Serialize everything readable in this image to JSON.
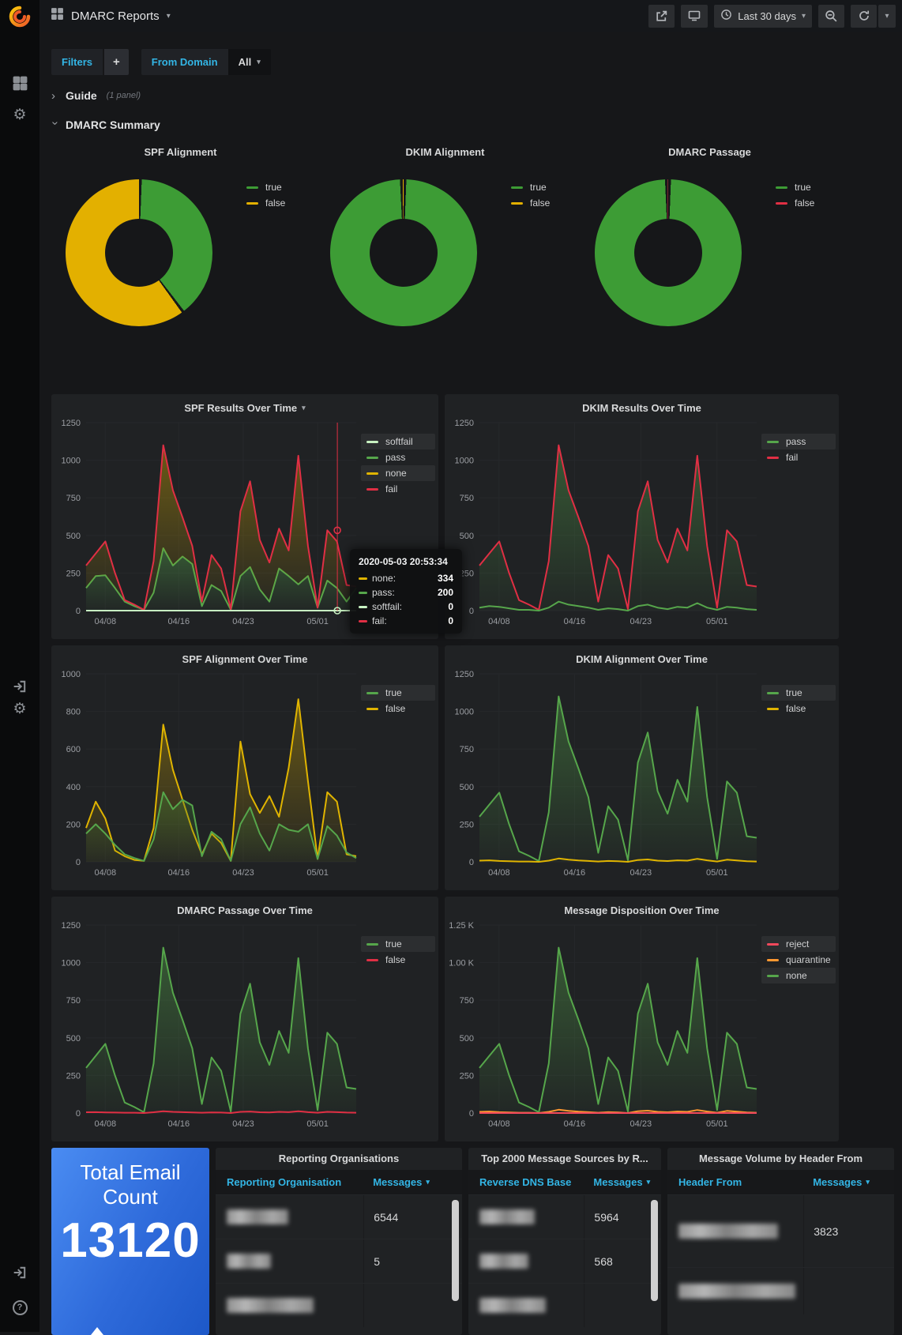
{
  "nav": {
    "title": "DMARC Reports",
    "time_range": "Last 30 days"
  },
  "icons": {
    "caret_down": "▾",
    "chevron": "›",
    "plus": "+",
    "question": "?",
    "logo": "grafana-spiral",
    "apps": "grid-squares",
    "settings": "gear",
    "sign_in": "arrow-into-bracket",
    "help": "question-circle",
    "share": "box-with-arrow",
    "tv_mode": "monitor",
    "clock": "clock-face",
    "zoom_out": "magnifier-minus",
    "refresh": "circular-arrows",
    "sort_desc": "▾",
    "gear_glyph": "⚙"
  },
  "filters": {
    "label": "Filters",
    "from_domain_label": "From Domain",
    "from_domain_value": "All"
  },
  "rows": {
    "guide": {
      "label": "Guide",
      "count": "(1 panel)"
    },
    "summary": {
      "label": "DMARC Summary"
    }
  },
  "colors": {
    "cyan": "#33b5e5",
    "green": "#56a64b",
    "yellow": "#e0b400",
    "red": "#e02f44",
    "salmon": "#f2495c",
    "orange": "#ff9830",
    "softfail": "#c8f2c2"
  },
  "stat": {
    "title": "Total Email Count",
    "value": "13120"
  },
  "tables": {
    "reporting": {
      "title": "Reporting Organisations",
      "col1": "Reporting Organisation",
      "col2": "Messages",
      "rows": [
        {
          "redacted": true,
          "blur_w": 78,
          "messages": "6544"
        },
        {
          "redacted": true,
          "blur_w": 56,
          "messages": "5"
        },
        {
          "redacted": true,
          "blur_w": 110,
          "messages": ""
        }
      ]
    },
    "sources": {
      "title": "Top 2000 Message Sources by R...",
      "col1": "Reverse DNS Base",
      "col2": "Messages",
      "rows": [
        {
          "redacted": true,
          "blur_w": 70,
          "messages": "5964"
        },
        {
          "redacted": true,
          "blur_w": 62,
          "messages": "568"
        },
        {
          "redacted": true,
          "blur_w": 84,
          "messages": ""
        }
      ]
    },
    "header_from": {
      "title": "Message Volume by Header From",
      "col1": "Header From",
      "col2": "Messages",
      "rows": [
        {
          "redacted": true,
          "blur_w": 126,
          "messages": "3823",
          "h": 92
        },
        {
          "redacted": true,
          "blur_w": 148,
          "messages": "",
          "h": 60
        }
      ]
    }
  },
  "chart_data": {
    "spf_alignment_pie": {
      "type": "pie",
      "title": "SPF Alignment",
      "slices": [
        {
          "label": "true",
          "color": "#3d9c35",
          "pct": 39.5
        },
        {
          "label": "false",
          "color": "#e3b000",
          "pct": 60.5
        }
      ]
    },
    "dkim_alignment_pie": {
      "type": "pie",
      "title": "DKIM Alignment",
      "slices": [
        {
          "label": "true",
          "color": "#3d9c35",
          "pct": 99.2
        },
        {
          "label": "false",
          "color": "#e3b000",
          "pct": 0.8
        }
      ]
    },
    "dmarc_passage_pie": {
      "type": "pie",
      "title": "DMARC Passage",
      "slices": [
        {
          "label": "true",
          "color": "#3d9c35",
          "pct": 99.3
        },
        {
          "label": "false",
          "color": "#e02f44",
          "pct": 0.7
        }
      ]
    },
    "spf_results": {
      "type": "area",
      "title": "SPF Results Over Time",
      "title_caret": true,
      "ymax": 1250,
      "yticks": [
        0,
        250,
        500,
        750,
        1000,
        1250
      ],
      "xticks": [
        {
          "label": "04/08",
          "f": 0.071
        },
        {
          "label": "04/16",
          "f": 0.343
        },
        {
          "label": "04/23",
          "f": 0.582
        },
        {
          "label": "05/01",
          "f": 0.857
        }
      ],
      "legend": [
        {
          "label": "softfail",
          "color": "#c8f2c2",
          "hl": true
        },
        {
          "label": "pass",
          "color": "#56a64b"
        },
        {
          "label": "none",
          "color": "#e0b400",
          "hl": true
        },
        {
          "label": "fail",
          "color": "#e02f44"
        }
      ],
      "series": [
        {
          "name": "pass",
          "color": "#56a64b",
          "fill": "zero",
          "fillColor": "#56a64b",
          "values": [
            150,
            230,
            235,
            150,
            60,
            30,
            5,
            120,
            415,
            300,
            360,
            310,
            30,
            170,
            130,
            5,
            230,
            290,
            140,
            60,
            280,
            230,
            175,
            230,
            20,
            200,
            150,
            60,
            150
          ]
        },
        {
          "name": "none-top (fail line)",
          "color": "#e02f44",
          "fill": "prev",
          "fillColor": "#d1a700",
          "values": [
            300,
            380,
            460,
            250,
            70,
            40,
            5,
            330,
            1100,
            800,
            620,
            430,
            60,
            370,
            280,
            10,
            660,
            860,
            470,
            320,
            545,
            400,
            1030,
            430,
            20,
            534,
            460,
            170,
            160
          ]
        },
        {
          "name": "softfail",
          "color": "#c8f2c2",
          "values": [
            0,
            0,
            0,
            0,
            0,
            0,
            0,
            0,
            0,
            0,
            0,
            0,
            0,
            0,
            0,
            0,
            0,
            0,
            0,
            0,
            0,
            0,
            0,
            0,
            0,
            0,
            0,
            0,
            0
          ]
        }
      ],
      "cursor": {
        "f": 0.93,
        "color": "#e02f44",
        "points": [
          {
            "v": 534,
            "color": "#e02f44"
          },
          {
            "v": 0,
            "color": "#c8f2c2"
          }
        ]
      },
      "tooltip": {
        "timestamp": "2020-05-03 20:53:34",
        "rows": [
          {
            "label": "none:",
            "value": "334",
            "color": "#e0b400"
          },
          {
            "label": "pass:",
            "value": "200",
            "color": "#56a64b"
          },
          {
            "label": "softfail:",
            "value": "0",
            "color": "#c8f2c2"
          },
          {
            "label": "fail:",
            "value": "0",
            "color": "#e02f44"
          }
        ]
      }
    },
    "dkim_results": {
      "type": "area",
      "title": "DKIM Results Over Time",
      "ymax": 1250,
      "yticks": [
        0,
        250,
        500,
        750,
        1000,
        1250
      ],
      "xticks": [
        {
          "label": "04/08",
          "f": 0.071
        },
        {
          "label": "04/16",
          "f": 0.343
        },
        {
          "label": "04/23",
          "f": 0.582
        },
        {
          "label": "05/01",
          "f": 0.857
        }
      ],
      "legend": [
        {
          "label": "pass",
          "color": "#56a64b",
          "hl": true
        },
        {
          "label": "fail",
          "color": "#e02f44"
        }
      ],
      "series": [
        {
          "name": "fail",
          "color": "#e02f44",
          "fill": "zero",
          "fillColor": "#56a64b",
          "values": [
            300,
            380,
            460,
            250,
            70,
            40,
            5,
            330,
            1100,
            800,
            620,
            430,
            60,
            370,
            280,
            10,
            660,
            860,
            470,
            320,
            545,
            400,
            1030,
            430,
            20,
            534,
            460,
            170,
            160
          ]
        },
        {
          "name": "pass",
          "color": "#56a64b",
          "values": [
            20,
            30,
            25,
            15,
            5,
            5,
            0,
            20,
            60,
            40,
            30,
            20,
            5,
            15,
            10,
            0,
            30,
            40,
            20,
            10,
            25,
            20,
            50,
            20,
            5,
            25,
            20,
            10,
            5
          ]
        }
      ]
    },
    "spf_alignment": {
      "type": "area",
      "title": "SPF Alignment Over Time",
      "ymax": 1000,
      "yticks": [
        0,
        200,
        400,
        600,
        800,
        1000
      ],
      "xticks": [
        {
          "label": "04/08",
          "f": 0.071
        },
        {
          "label": "04/16",
          "f": 0.343
        },
        {
          "label": "04/23",
          "f": 0.582
        },
        {
          "label": "05/01",
          "f": 0.857
        }
      ],
      "legend": [
        {
          "label": "true",
          "color": "#56a64b",
          "hl": true
        },
        {
          "label": "false",
          "color": "#e0b400"
        }
      ],
      "series": [
        {
          "name": "false",
          "color": "#e0b400",
          "fill": "zero",
          "fillColor": "#d1a700",
          "values": [
            180,
            320,
            230,
            60,
            30,
            10,
            5,
            180,
            730,
            490,
            330,
            170,
            40,
            150,
            100,
            5,
            640,
            360,
            260,
            350,
            240,
            500,
            865,
            430,
            15,
            370,
            320,
            40,
            30
          ]
        },
        {
          "name": "true",
          "color": "#56a64b",
          "fill": "zero",
          "fillColor": "#3f7a33",
          "values": [
            150,
            200,
            150,
            90,
            40,
            20,
            5,
            120,
            370,
            280,
            330,
            300,
            30,
            160,
            120,
            5,
            200,
            290,
            150,
            60,
            200,
            170,
            160,
            200,
            15,
            190,
            140,
            50,
            20
          ]
        }
      ]
    },
    "dkim_alignment": {
      "type": "area",
      "title": "DKIM Alignment Over Time",
      "ymax": 1250,
      "yticks": [
        0,
        250,
        500,
        750,
        1000,
        1250
      ],
      "xticks": [
        {
          "label": "04/08",
          "f": 0.071
        },
        {
          "label": "04/16",
          "f": 0.343
        },
        {
          "label": "04/23",
          "f": 0.582
        },
        {
          "label": "05/01",
          "f": 0.857
        }
      ],
      "legend": [
        {
          "label": "true",
          "color": "#56a64b",
          "hl": true
        },
        {
          "label": "false",
          "color": "#e0b400"
        }
      ],
      "series": [
        {
          "name": "true",
          "color": "#56a64b",
          "fill": "zero",
          "fillColor": "#56a64b",
          "values": [
            300,
            380,
            460,
            250,
            70,
            40,
            5,
            330,
            1100,
            800,
            620,
            430,
            60,
            370,
            280,
            10,
            660,
            860,
            470,
            320,
            545,
            400,
            1030,
            430,
            20,
            534,
            460,
            170,
            160
          ]
        },
        {
          "name": "false",
          "color": "#e0b400",
          "values": [
            8,
            10,
            6,
            4,
            2,
            2,
            0,
            8,
            22,
            14,
            9,
            6,
            2,
            6,
            4,
            0,
            12,
            16,
            8,
            5,
            10,
            8,
            20,
            10,
            2,
            14,
            9,
            4,
            2
          ]
        }
      ]
    },
    "dmarc_passage": {
      "type": "area",
      "title": "DMARC Passage Over Time",
      "ymax": 1250,
      "yticks": [
        0,
        250,
        500,
        750,
        1000,
        1250
      ],
      "xticks": [
        {
          "label": "04/08",
          "f": 0.071
        },
        {
          "label": "04/16",
          "f": 0.343
        },
        {
          "label": "04/23",
          "f": 0.582
        },
        {
          "label": "05/01",
          "f": 0.857
        }
      ],
      "legend": [
        {
          "label": "true",
          "color": "#56a64b",
          "hl": true
        },
        {
          "label": "false",
          "color": "#e02f44"
        }
      ],
      "series": [
        {
          "name": "true",
          "color": "#56a64b",
          "fill": "zero",
          "fillColor": "#56a64b",
          "values": [
            300,
            380,
            460,
            250,
            70,
            40,
            5,
            330,
            1100,
            800,
            620,
            430,
            60,
            370,
            280,
            10,
            660,
            860,
            470,
            320,
            545,
            400,
            1030,
            430,
            20,
            534,
            460,
            170,
            160
          ]
        },
        {
          "name": "false",
          "color": "#e02f44",
          "values": [
            5,
            6,
            4,
            3,
            2,
            2,
            0,
            5,
            12,
            8,
            6,
            4,
            2,
            4,
            3,
            0,
            8,
            10,
            5,
            4,
            8,
            6,
            12,
            6,
            2,
            8,
            6,
            3,
            2
          ]
        }
      ]
    },
    "message_disposition": {
      "type": "area",
      "title": "Message Disposition Over Time",
      "ymax": 1250,
      "yticks": [
        0,
        250,
        500,
        750,
        1000,
        1250
      ],
      "ytick_labels": [
        "0",
        "250",
        "500",
        "750",
        "1.00 K",
        "1.25 K"
      ],
      "xticks": [
        {
          "label": "04/08",
          "f": 0.071
        },
        {
          "label": "04/16",
          "f": 0.343
        },
        {
          "label": "04/23",
          "f": 0.582
        },
        {
          "label": "05/01",
          "f": 0.857
        }
      ],
      "legend": [
        {
          "label": "reject",
          "color": "#f2495c",
          "hl": true
        },
        {
          "label": "quarantine",
          "color": "#ff9830"
        },
        {
          "label": "none",
          "color": "#56a64b",
          "hl": true
        }
      ],
      "series": [
        {
          "name": "none",
          "color": "#56a64b",
          "fill": "zero",
          "fillColor": "#56a64b",
          "values": [
            300,
            380,
            460,
            250,
            70,
            40,
            5,
            330,
            1100,
            800,
            620,
            430,
            60,
            370,
            280,
            10,
            660,
            860,
            470,
            320,
            545,
            400,
            1030,
            430,
            20,
            534,
            460,
            170,
            160
          ]
        },
        {
          "name": "quarantine",
          "color": "#ff9830",
          "values": [
            8,
            10,
            6,
            4,
            2,
            2,
            0,
            8,
            22,
            14,
            9,
            6,
            2,
            6,
            4,
            0,
            12,
            16,
            8,
            5,
            10,
            8,
            20,
            10,
            2,
            14,
            9,
            4,
            2
          ]
        },
        {
          "name": "reject",
          "color": "#f2495c",
          "values": [
            0,
            0,
            0,
            0,
            0,
            0,
            0,
            0,
            0,
            0,
            0,
            0,
            0,
            0,
            0,
            0,
            0,
            0,
            0,
            0,
            0,
            0,
            0,
            0,
            0,
            0,
            0,
            0,
            0
          ]
        }
      ]
    }
  }
}
